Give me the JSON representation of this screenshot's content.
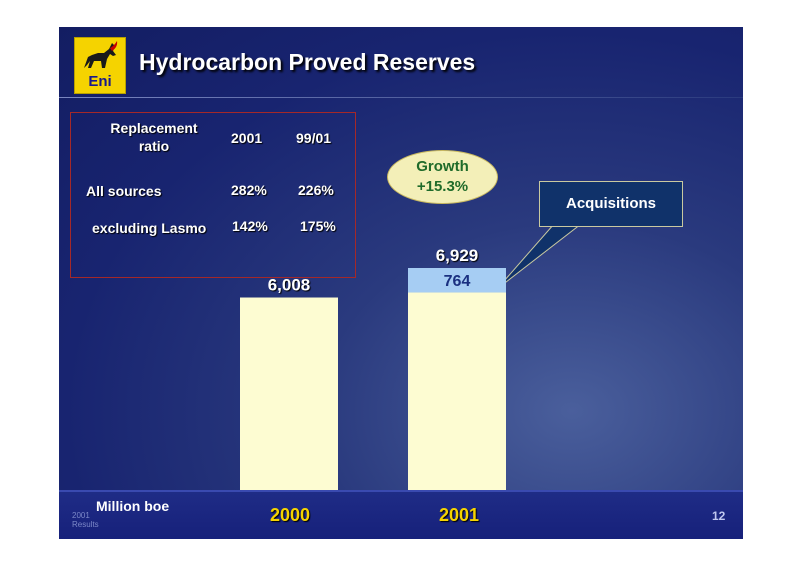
{
  "slide": {
    "title": "Hydrocarbon Proved Reserves",
    "logo_text": "Eni",
    "page_number": "12",
    "corner_label": [
      "2001",
      "Results"
    ]
  },
  "table": {
    "header_line1": "Replacement",
    "header_line2": "ratio",
    "col1": "2001",
    "col2": "99/01",
    "rows": [
      {
        "label": "All sources",
        "v2001": "282%",
        "v9901": "226%"
      },
      {
        "label": "excluding Lasmo",
        "v2001": "142%",
        "v9901": "175%"
      }
    ]
  },
  "callouts": {
    "growth_line1": "Growth",
    "growth_line2": "+15.3%",
    "acquisitions": "Acquisitions"
  },
  "chart_data": {
    "type": "bar",
    "categories": [
      "2000",
      "2001"
    ],
    "series": [
      {
        "name": "",
        "values": [
          6008,
          6165
        ]
      },
      {
        "name": "Acquisitions",
        "values": [
          0,
          764
        ]
      }
    ],
    "totals": [
      6008,
      6929
    ],
    "total_labels": [
      "6,008",
      "6,929"
    ],
    "segment_labels": [
      "",
      "764"
    ],
    "unit": "Million boe",
    "colors": {
      "base": "#fdfcd2",
      "acquisitions": "#a6cdf3",
      "total_label": "#ffffff",
      "segment_label": "#1a3080",
      "category_label": "#f5d300"
    }
  }
}
